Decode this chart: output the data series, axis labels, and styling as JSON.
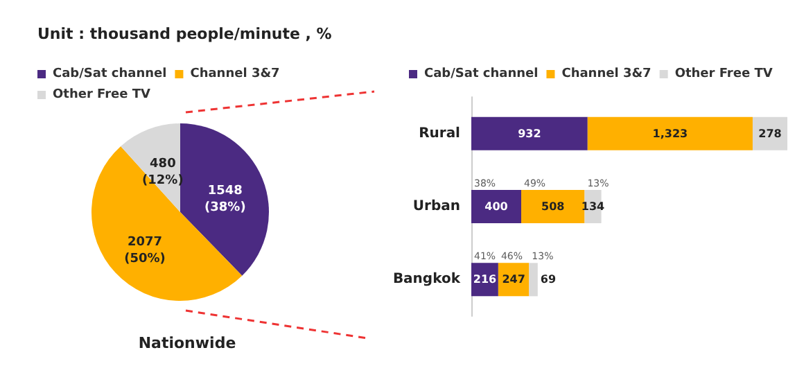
{
  "chart_data": [
    {
      "type": "pie",
      "title": "Unit : thousand people/minute , %",
      "xlabel": "Nationwide",
      "categories": [
        "Cab/Sat channel",
        "Channel 3&7",
        "Other Free TV"
      ],
      "values": [
        1548,
        2077,
        480
      ],
      "colors": [
        "#4b2a82",
        "#ffb000",
        "#d9d9d9"
      ],
      "value_labels": [
        "1548\n(38%)",
        "2077\n(50%)",
        "480\n(12%)"
      ],
      "legend": "top left"
    },
    {
      "type": "bar",
      "orientation": "horizontal",
      "stacked": true,
      "categories": [
        "Rural",
        "Urban",
        "Bangkok"
      ],
      "legend": "top",
      "series": [
        {
          "name": "Cab/Sat channel",
          "color": "#4b2a82",
          "values": [
            932,
            400,
            216
          ],
          "value_labels": [
            "932",
            "400",
            "216"
          ]
        },
        {
          "name": "Channel 3&7",
          "color": "#ffb000",
          "values": [
            1323,
            508,
            247
          ],
          "value_labels": [
            "1,323",
            "508",
            "247"
          ]
        },
        {
          "name": "Other Free TV",
          "color": "#d9d9d9",
          "values": [
            278,
            134,
            69
          ],
          "value_labels": [
            "278",
            "134",
            "69"
          ]
        }
      ],
      "annotations": [
        {
          "text": "38%",
          "x": 0,
          "y": "Urban"
        },
        {
          "text": "49%",
          "x": 400,
          "y": "Urban"
        },
        {
          "text": "13%",
          "x": 908,
          "y": "Urban"
        },
        {
          "text": "41%",
          "x": 0,
          "y": "Bangkok"
        },
        {
          "text": "46%",
          "x": 216,
          "y": "Bangkok"
        },
        {
          "text": "13%",
          "x": 463,
          "y": "Bangkok"
        }
      ]
    }
  ]
}
